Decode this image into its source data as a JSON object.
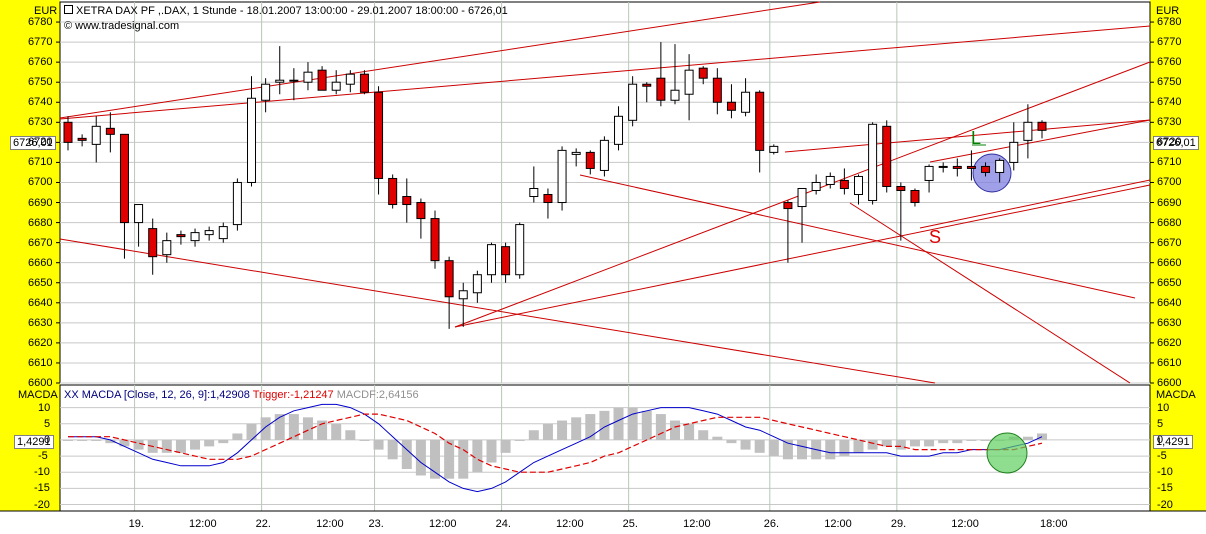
{
  "header": {
    "title": "XETRA DAX PF ,.DAX, 1 Stunde - 18.01.2007 13:00:00 - 29.01.2007 18:00:00 - 6726,01",
    "source": "www.tradesignal.com",
    "macd_label": "XX MACDA [Close, 12, 26, 9]:1,42908",
    "trigger_label": "Trigger:-1,21247",
    "macdf_label": "MACDF:2,64156"
  },
  "price_axis": {
    "unit": "EUR",
    "current_tag": "6726,01",
    "ticks": [
      "6780",
      "6770",
      "6760",
      "6750",
      "6740",
      "6730",
      "6720",
      "6710",
      "6700",
      "6690",
      "6680",
      "6670",
      "6660",
      "6650",
      "6640",
      "6630",
      "6620",
      "6610",
      "6600"
    ]
  },
  "macd_axis": {
    "unit": "MACDA",
    "current_tag": "1,4291",
    "ticks": [
      "10",
      "5",
      "0",
      "-5",
      "-10",
      "-15",
      "-20"
    ]
  },
  "time_axis": {
    "labels": [
      "19.",
      "12:00",
      "22.",
      "12:00",
      "23.",
      "12:00",
      "24.",
      "12:00",
      "25.",
      "12:00",
      "26.",
      "12:00",
      "29.",
      "12:00",
      "18:00"
    ]
  },
  "annotations": {
    "long_signal": "L",
    "short_signal": "S"
  },
  "colors": {
    "axis_bg": "#ffff00",
    "bear": "#e00000",
    "bull": "#ffffff",
    "macd": "#0000cc",
    "trigger": "#e00000",
    "hist": "#c0c0c0",
    "trendline": "#cc0000",
    "long": "#008000",
    "short": "#e00000"
  },
  "chart_data": {
    "type": "candlestick",
    "title": "XETRA DAX PF ,.DAX, 1 Stunde",
    "ylabel": "EUR",
    "ylim": [
      6600,
      6790
    ],
    "candles": [
      {
        "d": "18.01",
        "o": 6730,
        "h": 6733,
        "l": 6716,
        "c": 6720
      },
      {
        "d": "18.01",
        "o": 6722,
        "h": 6724,
        "l": 6718,
        "c": 6721
      },
      {
        "d": "18.01",
        "o": 6719,
        "h": 6733,
        "l": 6710,
        "c": 6728
      },
      {
        "d": "18.01",
        "o": 6727,
        "h": 6735,
        "l": 6715,
        "c": 6724
      },
      {
        "d": "18.01",
        "o": 6724,
        "h": 6724,
        "l": 6662,
        "c": 6680
      },
      {
        "d": "19.01",
        "o": 6680,
        "h": 6688,
        "l": 6668,
        "c": 6689
      },
      {
        "d": "19.01",
        "o": 6677,
        "h": 6682,
        "l": 6654,
        "c": 6663
      },
      {
        "d": "19.01",
        "o": 6664,
        "h": 6675,
        "l": 6660,
        "c": 6671
      },
      {
        "d": "19.01",
        "o": 6674,
        "h": 6676,
        "l": 6669,
        "c": 6673
      },
      {
        "d": "19.01",
        "o": 6671,
        "h": 6677,
        "l": 6668,
        "c": 6675
      },
      {
        "d": "19.01",
        "o": 6674,
        "h": 6678,
        "l": 6671,
        "c": 6676
      },
      {
        "d": "19.01",
        "o": 6672,
        "h": 6680,
        "l": 6670,
        "c": 6678
      },
      {
        "d": "19.01",
        "o": 6679,
        "h": 6702,
        "l": 6676,
        "c": 6700
      },
      {
        "d": "19.01",
        "o": 6700,
        "h": 6753,
        "l": 6698,
        "c": 6742
      },
      {
        "d": "22.01",
        "o": 6741,
        "h": 6752,
        "l": 6735,
        "c": 6749
      },
      {
        "d": "22.01",
        "o": 6750,
        "h": 6768,
        "l": 6744,
        "c": 6751
      },
      {
        "d": "22.01",
        "o": 6751,
        "h": 6757,
        "l": 6741,
        "c": 6751
      },
      {
        "d": "22.01",
        "o": 6750,
        "h": 6760,
        "l": 6746,
        "c": 6755
      },
      {
        "d": "22.01",
        "o": 6756,
        "h": 6758,
        "l": 6746,
        "c": 6746
      },
      {
        "d": "22.01",
        "o": 6746,
        "h": 6756,
        "l": 6744,
        "c": 6750
      },
      {
        "d": "22.01",
        "o": 6749,
        "h": 6756,
        "l": 6745,
        "c": 6754
      },
      {
        "d": "22.01",
        "o": 6754,
        "h": 6756,
        "l": 6744,
        "c": 6745
      },
      {
        "d": "23.01",
        "o": 6745,
        "h": 6748,
        "l": 6694,
        "c": 6702
      },
      {
        "d": "23.01",
        "o": 6702,
        "h": 6704,
        "l": 6687,
        "c": 6689
      },
      {
        "d": "23.01",
        "o": 6693,
        "h": 6702,
        "l": 6680,
        "c": 6689
      },
      {
        "d": "23.01",
        "o": 6690,
        "h": 6692,
        "l": 6672,
        "c": 6682
      },
      {
        "d": "23.01",
        "o": 6682,
        "h": 6686,
        "l": 6657,
        "c": 6661
      },
      {
        "d": "23.01",
        "o": 6661,
        "h": 6663,
        "l": 6627,
        "c": 6643
      },
      {
        "d": "23.01",
        "o": 6642,
        "h": 6650,
        "l": 6628,
        "c": 6646
      },
      {
        "d": "23.01",
        "o": 6645,
        "h": 6656,
        "l": 6640,
        "c": 6654
      },
      {
        "d": "23.01",
        "o": 6654,
        "h": 6670,
        "l": 6650,
        "c": 6669
      },
      {
        "d": "24.01",
        "o": 6668,
        "h": 6670,
        "l": 6650,
        "c": 6654
      },
      {
        "d": "24.01",
        "o": 6654,
        "h": 6680,
        "l": 6652,
        "c": 6679
      },
      {
        "d": "24.01",
        "o": 6693,
        "h": 6708,
        "l": 6690,
        "c": 6697
      },
      {
        "d": "24.01",
        "o": 6694,
        "h": 6697,
        "l": 6682,
        "c": 6690
      },
      {
        "d": "24.01",
        "o": 6690,
        "h": 6718,
        "l": 6686,
        "c": 6716
      },
      {
        "d": "24.01",
        "o": 6714,
        "h": 6717,
        "l": 6708,
        "c": 6715
      },
      {
        "d": "24.01",
        "o": 6715,
        "h": 6716,
        "l": 6704,
        "c": 6707
      },
      {
        "d": "24.01",
        "o": 6706,
        "h": 6723,
        "l": 6703,
        "c": 6721
      },
      {
        "d": "24.01",
        "o": 6719,
        "h": 6738,
        "l": 6716,
        "c": 6733
      },
      {
        "d": "25.01",
        "o": 6731,
        "h": 6753,
        "l": 6728,
        "c": 6749
      },
      {
        "d": "25.01",
        "o": 6749,
        "h": 6750,
        "l": 6740,
        "c": 6748
      },
      {
        "d": "25.01",
        "o": 6752,
        "h": 6770,
        "l": 6738,
        "c": 6741
      },
      {
        "d": "25.01",
        "o": 6741,
        "h": 6769,
        "l": 6739,
        "c": 6746
      },
      {
        "d": "25.01",
        "o": 6744,
        "h": 6764,
        "l": 6731,
        "c": 6756
      },
      {
        "d": "25.01",
        "o": 6757,
        "h": 6758,
        "l": 6749,
        "c": 6752
      },
      {
        "d": "25.01",
        "o": 6752,
        "h": 6757,
        "l": 6734,
        "c": 6740
      },
      {
        "d": "25.01",
        "o": 6740,
        "h": 6749,
        "l": 6732,
        "c": 6736
      },
      {
        "d": "25.01",
        "o": 6735,
        "h": 6752,
        "l": 6733,
        "c": 6745
      },
      {
        "d": "25.01",
        "o": 6745,
        "h": 6746,
        "l": 6705,
        "c": 6716
      },
      {
        "d": "26.01",
        "o": 6715,
        "h": 6719,
        "l": 6714,
        "c": 6718
      },
      {
        "d": "26.01",
        "o": 6690,
        "h": 6691,
        "l": 6660,
        "c": 6687
      },
      {
        "d": "26.01",
        "o": 6688,
        "h": 6697,
        "l": 6670,
        "c": 6697
      },
      {
        "d": "26.01",
        "o": 6696,
        "h": 6704,
        "l": 6694,
        "c": 6700
      },
      {
        "d": "26.01",
        "o": 6699,
        "h": 6705,
        "l": 6697,
        "c": 6703
      },
      {
        "d": "26.01",
        "o": 6701,
        "h": 6707,
        "l": 6694,
        "c": 6697
      },
      {
        "d": "26.01",
        "o": 6694,
        "h": 6704,
        "l": 6689,
        "c": 6703
      },
      {
        "d": "26.01",
        "o": 6691,
        "h": 6730,
        "l": 6689,
        "c": 6729
      },
      {
        "d": "26.01",
        "o": 6728,
        "h": 6731,
        "l": 6695,
        "c": 6698
      },
      {
        "d": "29.01",
        "o": 6698,
        "h": 6700,
        "l": 6671,
        "c": 6696
      },
      {
        "d": "29.01",
        "o": 6696,
        "h": 6697,
        "l": 6688,
        "c": 6690
      },
      {
        "d": "29.01",
        "o": 6701,
        "h": 6709,
        "l": 6695,
        "c": 6708
      },
      {
        "d": "29.01",
        "o": 6708,
        "h": 6710,
        "l": 6705,
        "c": 6708
      },
      {
        "d": "29.01",
        "o": 6708,
        "h": 6712,
        "l": 6703,
        "c": 6707
      },
      {
        "d": "29.01",
        "o": 6708,
        "h": 6716,
        "l": 6701,
        "c": 6707
      },
      {
        "d": "29.01",
        "o": 6708,
        "h": 6710,
        "l": 6703,
        "c": 6705
      },
      {
        "d": "29.01",
        "o": 6705,
        "h": 6712,
        "l": 6700,
        "c": 6711
      },
      {
        "d": "29.01",
        "o": 6710,
        "h": 6730,
        "l": 6706,
        "c": 6720
      },
      {
        "d": "29.01",
        "o": 6721,
        "h": 6739,
        "l": 6712,
        "c": 6730
      },
      {
        "d": "29.01",
        "o": 6730,
        "h": 6731,
        "l": 6722,
        "c": 6726
      }
    ],
    "macd": {
      "ylim": [
        -22,
        17
      ],
      "macd": [
        1,
        1,
        1,
        0,
        -2,
        -4,
        -6,
        -7,
        -8,
        -8,
        -8,
        -7,
        -4,
        0,
        4,
        7,
        9,
        10,
        11,
        11,
        10,
        8,
        5,
        1,
        -3,
        -7,
        -10,
        -13,
        -15,
        -16,
        -15,
        -13,
        -10,
        -7,
        -5,
        -3,
        -1,
        1,
        4,
        6,
        8,
        9,
        10,
        10,
        10,
        9,
        8,
        6,
        4,
        3,
        1,
        -1,
        -2,
        -3,
        -4,
        -4,
        -4,
        -4,
        -4,
        -5,
        -5,
        -5,
        -4,
        -4,
        -3,
        -3,
        -3,
        -2,
        -1,
        1
      ],
      "trigger": [
        1,
        1,
        1,
        1,
        0,
        -1,
        -2,
        -3,
        -4,
        -5,
        -6,
        -6,
        -6,
        -5,
        -3,
        -1,
        1,
        3,
        5,
        6,
        7,
        8,
        8,
        7,
        6,
        4,
        2,
        -1,
        -3,
        -6,
        -8,
        -9,
        -10,
        -10,
        -10,
        -9,
        -8,
        -7,
        -5,
        -4,
        -2,
        0,
        2,
        4,
        5,
        6,
        7,
        7,
        7,
        7,
        6,
        5,
        4,
        3,
        2,
        1,
        0,
        -1,
        -2,
        -2,
        -3,
        -3,
        -3,
        -3,
        -3,
        -3,
        -3,
        -3,
        -2,
        -1
      ],
      "hist": [
        0,
        0,
        0,
        -1,
        -2,
        -3,
        -4,
        -4,
        -4,
        -3,
        -2,
        -1,
        2,
        5,
        7,
        8,
        8,
        7,
        6,
        5,
        3,
        0,
        -3,
        -6,
        -9,
        -11,
        -12,
        -12,
        -12,
        -10,
        -7,
        -4,
        0,
        3,
        5,
        6,
        7,
        8,
        9,
        10,
        10,
        9,
        8,
        6,
        5,
        3,
        1,
        -1,
        -3,
        -4,
        -5,
        -6,
        -6,
        -6,
        -6,
        -5,
        -4,
        -3,
        -2,
        -3,
        -2,
        -2,
        -1,
        -1,
        0,
        0,
        0,
        1,
        1,
        2
      ]
    }
  }
}
